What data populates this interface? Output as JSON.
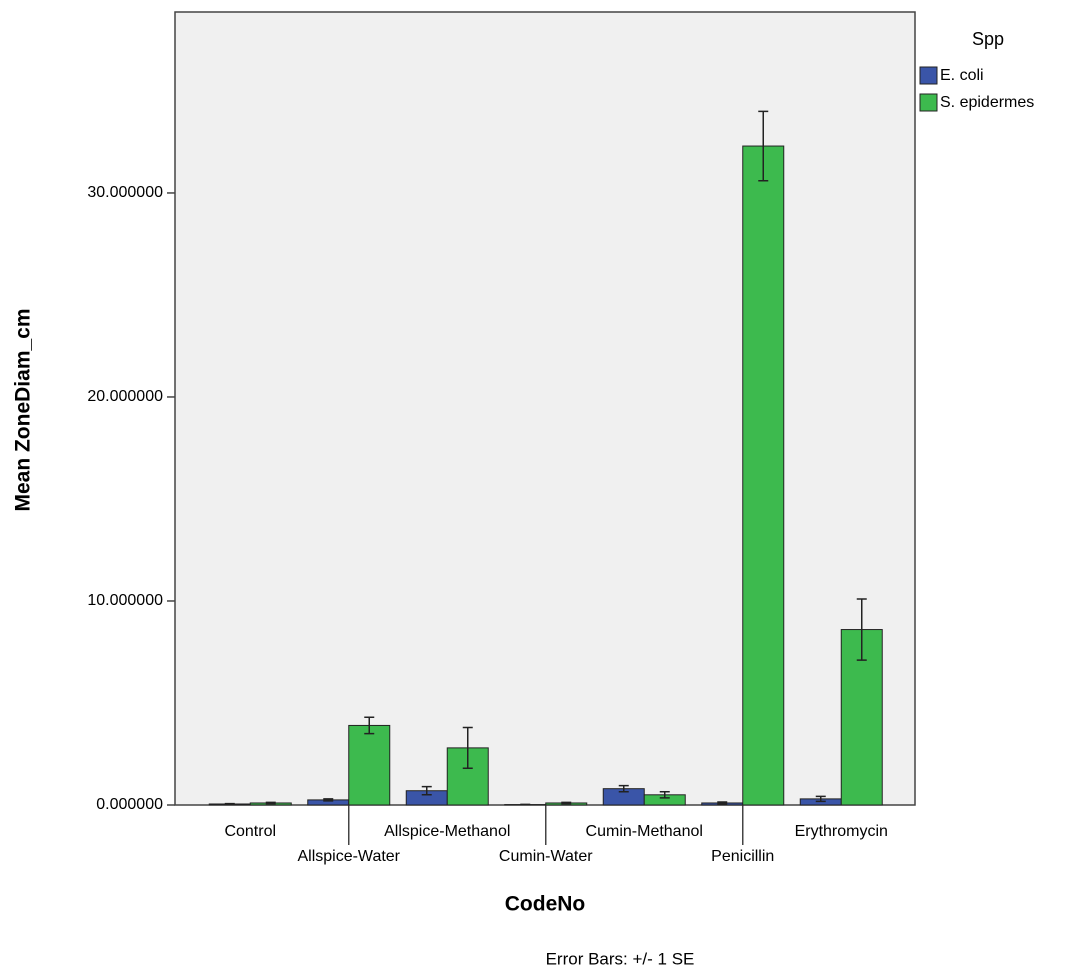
{
  "chart_data": {
    "type": "bar",
    "y_label": "Mean ZoneDiam_cm",
    "x_label": "CodeNo",
    "footnote": "Error Bars: +/- 1 SE",
    "legend_title": "Spp",
    "legend_position": "right",
    "categories": [
      "Control",
      "Allspice-Water",
      "Allspice-Methanol",
      "Cumin-Water",
      "Cumin-Methanol",
      "Penicillin",
      "Erythromycin"
    ],
    "series": [
      {
        "name": "E. coli",
        "color": "#3a55a8",
        "values": [
          0.05,
          0.25,
          0.7,
          0.02,
          0.8,
          0.1,
          0.3
        ],
        "errors": [
          0.02,
          0.05,
          0.2,
          0.01,
          0.15,
          0.05,
          0.12
        ]
      },
      {
        "name": "S. epidermes",
        "color": "#3dba4e",
        "values": [
          0.1,
          3.9,
          2.8,
          0.1,
          0.5,
          32.3,
          8.6
        ],
        "errors": [
          0.03,
          0.4,
          1.0,
          0.03,
          0.15,
          1.7,
          1.5
        ]
      }
    ],
    "ylim": [
      0,
      38.87
    ],
    "yticks": [
      {
        "value": 0,
        "label": "0.000000"
      },
      {
        "value": 10,
        "label": "10.000000"
      },
      {
        "value": 20,
        "label": "20.000000"
      },
      {
        "value": 30,
        "label": "30.000000"
      }
    ]
  }
}
